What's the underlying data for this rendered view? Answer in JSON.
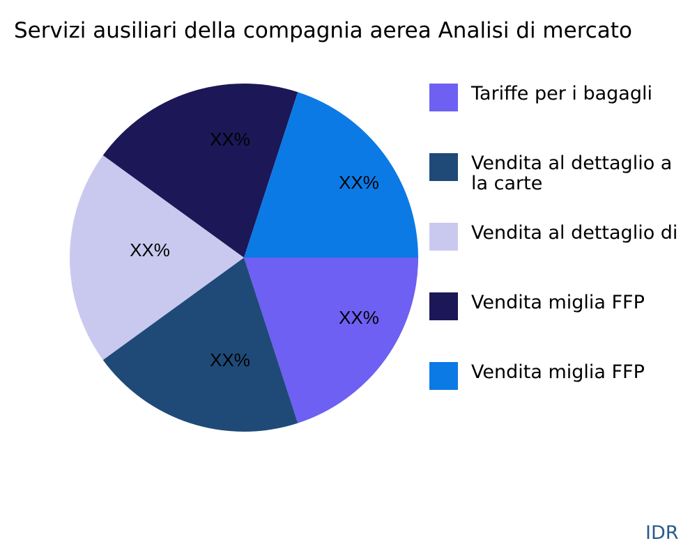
{
  "chart_data": {
    "type": "pie",
    "title": "Servizi ausiliari della compagnia aerea Analisi di mercato",
    "slices": [
      {
        "label": "Tariffe per i bagagli",
        "value": 20,
        "data_label": "XX%",
        "color": "#6e60f2"
      },
      {
        "label": "Vendita al dettaglio a\nla carte",
        "value": 20,
        "data_label": "XX%",
        "color": "#1f4a78"
      },
      {
        "label": "Vendita al dettaglio di",
        "value": 20,
        "data_label": "XX%",
        "color": "#c9c9f0"
      },
      {
        "label": "Vendita miglia FFP",
        "value": 20,
        "data_label": "XX%",
        "color": "#1c1757"
      },
      {
        "label": "Vendita miglia FFP",
        "value": 20,
        "data_label": "XX%",
        "color": "#0c7ae5"
      }
    ],
    "direction": "clockwise",
    "legend_position": "right"
  },
  "source": "IDR"
}
